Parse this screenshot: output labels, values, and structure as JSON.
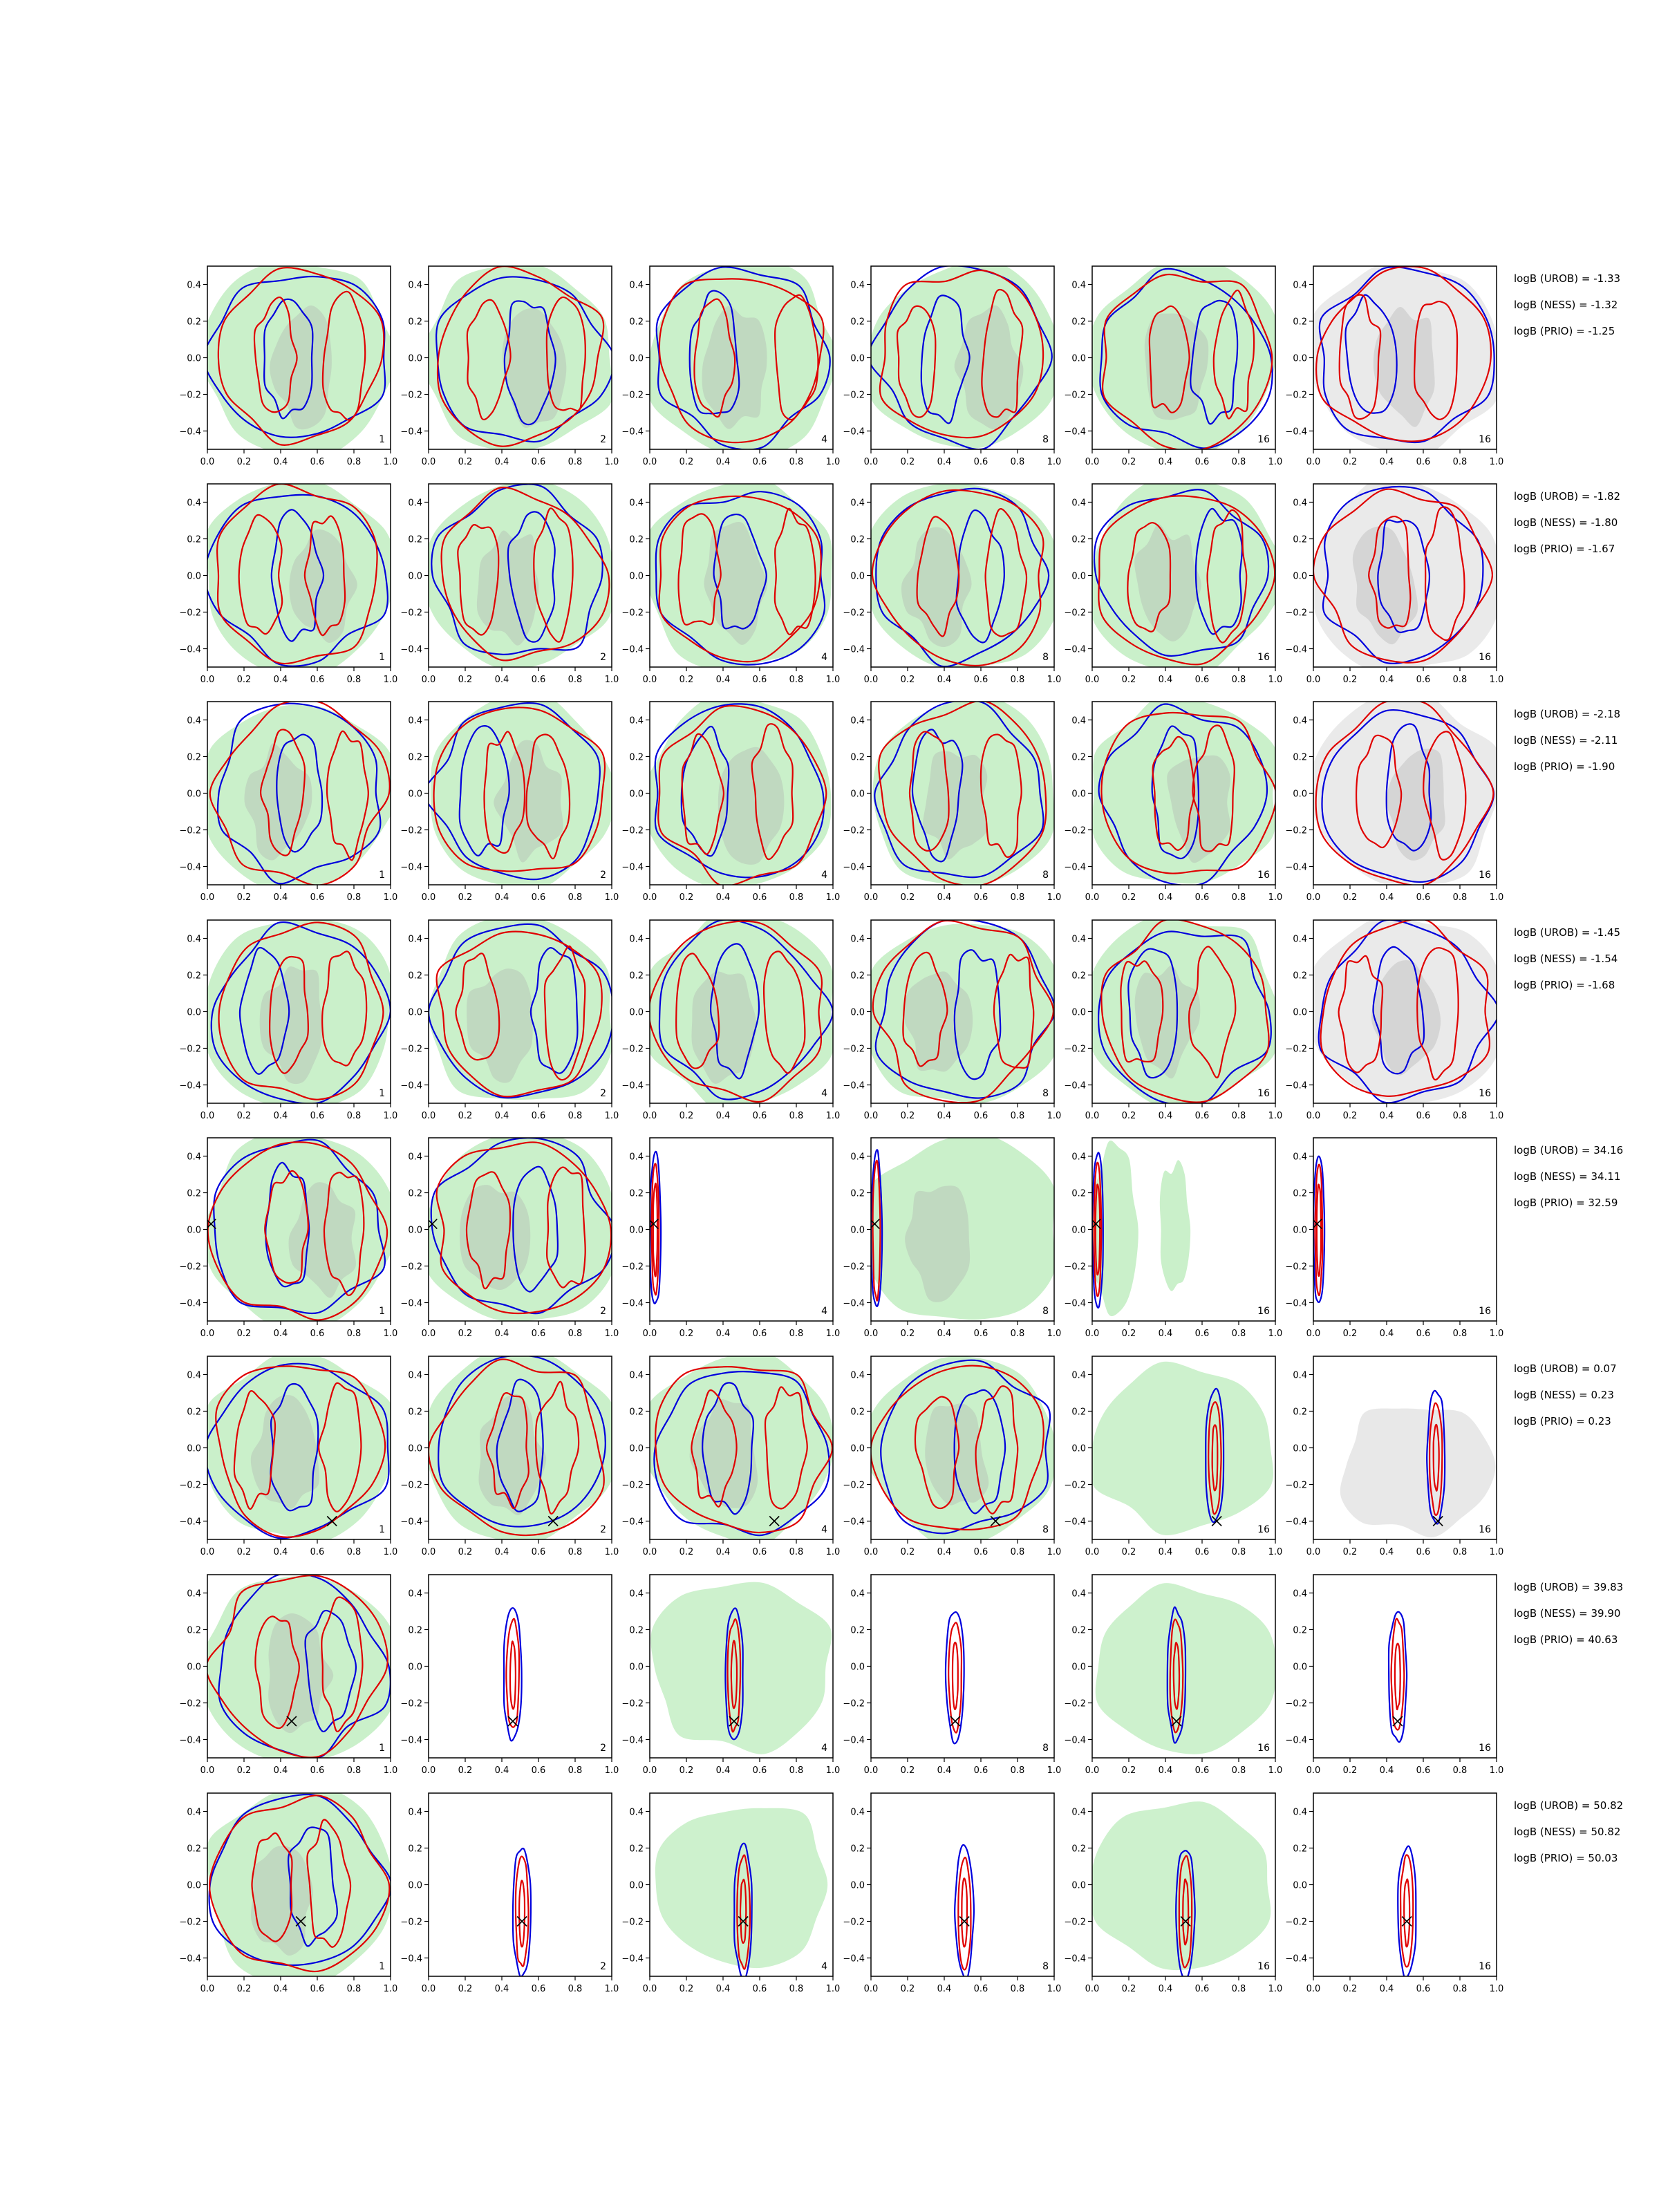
{
  "chart_data": {
    "type": "contour",
    "layout": {
      "rows": 8,
      "cols": 6
    },
    "xlim": [
      0.0,
      1.0
    ],
    "ylim": [
      -0.5,
      0.5
    ],
    "xticks": [
      "0.0",
      "0.2",
      "0.4",
      "0.6",
      "0.8",
      "1.0"
    ],
    "yticks": [
      "−0.4",
      "−0.2",
      "0.0",
      "0.2",
      "0.4"
    ],
    "column_labels": [
      "1",
      "2",
      "4",
      "8",
      "16",
      "16"
    ],
    "colors": {
      "fill_green": "#b8ebb8",
      "fill_gray": "#d8d8d8",
      "contour_red": "#e00000",
      "contour_blue": "#0000dd",
      "marker": "#000000"
    },
    "rows": [
      {
        "logB": [
          "logB (UROB) = -1.33",
          "logB (NESS) = -1.32",
          "logB (PRIO) = -1.25"
        ],
        "marker": null
      },
      {
        "logB": [
          "logB (UROB) = -1.82",
          "logB (NESS) = -1.80",
          "logB (PRIO) = -1.67"
        ],
        "marker": null
      },
      {
        "logB": [
          "logB (UROB) = -2.18",
          "logB (NESS) = -2.11",
          "logB (PRIO) = -1.90"
        ],
        "marker": null
      },
      {
        "logB": [
          "logB (UROB) = -1.45",
          "logB (NESS) = -1.54",
          "logB (PRIO) = -1.68"
        ],
        "marker": null
      },
      {
        "logB": [
          "logB (UROB) = 34.16",
          "logB (NESS) = 34.11",
          "logB (PRIO) = 32.59"
        ],
        "marker": [
          0.02,
          0.03
        ]
      },
      {
        "logB": [
          "logB (UROB) = 0.07",
          "logB (NESS) = 0.23",
          "logB (PRIO) = 0.23"
        ],
        "marker": [
          0.68,
          -0.4
        ]
      },
      {
        "logB": [
          "logB (UROB) = 39.83",
          "logB (NESS) = 39.90",
          "logB (PRIO) = 40.63"
        ],
        "marker": [
          0.46,
          -0.3
        ]
      },
      {
        "logB": [
          "logB (UROB) = 50.82",
          "logB (NESS) = 50.82",
          "logB (PRIO) = 50.03"
        ],
        "marker": [
          0.51,
          -0.2
        ]
      }
    ]
  }
}
